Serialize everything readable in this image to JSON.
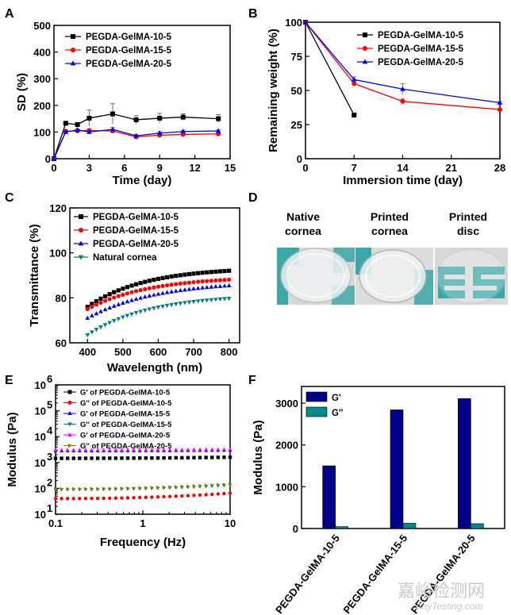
{
  "panel_labels": [
    "A",
    "B",
    "C",
    "D",
    "E",
    "F"
  ],
  "photos": {
    "labels": [
      {
        "line1": "Native",
        "line2": "cornea"
      },
      {
        "line1": "Printed",
        "line2": "cornea"
      },
      {
        "line1": "Printed",
        "line2": "disc"
      }
    ],
    "colors": {
      "background": "#d9d9d9",
      "teal": "#3aa7a8",
      "lens": "#eef2f2"
    }
  },
  "watermark": {
    "text": "嘉峪检测网",
    "sub": "AnyTesting.com"
  },
  "chart_data": [
    {
      "id": "A",
      "type": "line",
      "title": "",
      "xlabel": "Time (day)",
      "ylabel": "SD (%)",
      "xlim": [
        0,
        15
      ],
      "ylim": [
        0,
        500
      ],
      "xticks": [
        0,
        3,
        6,
        9,
        12,
        15
      ],
      "yticks": [
        0,
        100,
        200,
        300,
        400,
        500
      ],
      "legend_position": "top-left",
      "series": [
        {
          "name": "PEGDA-GelMA-10-5",
          "color": "#000000",
          "marker": "square",
          "x": [
            0,
            1,
            2,
            3,
            5,
            7,
            9,
            11,
            14
          ],
          "y": [
            0,
            133,
            128,
            152,
            168,
            146,
            152,
            156,
            150
          ],
          "err": [
            0,
            6,
            6,
            30,
            38,
            15,
            18,
            12,
            15
          ]
        },
        {
          "name": "PEGDA-GelMA-15-5",
          "color": "#ff0000",
          "marker": "circle",
          "x": [
            0,
            1,
            2,
            3,
            5,
            7,
            9,
            11,
            14
          ],
          "y": [
            0,
            103,
            104,
            106,
            104,
            82,
            88,
            91,
            93
          ],
          "err": [
            0,
            4,
            4,
            5,
            6,
            5,
            5,
            5,
            5
          ]
        },
        {
          "name": "PEGDA-GelMA-20-5",
          "color": "#0000ff",
          "marker": "triangle",
          "x": [
            0,
            1,
            2,
            3,
            5,
            7,
            9,
            11,
            14
          ],
          "y": [
            0,
            100,
            108,
            100,
            110,
            86,
            96,
            102,
            104
          ],
          "err": [
            0,
            4,
            4,
            5,
            8,
            5,
            6,
            5,
            5
          ]
        }
      ]
    },
    {
      "id": "B",
      "type": "line",
      "title": "",
      "xlabel": "Immersion time (day)",
      "ylabel": "Remaining weight (%)",
      "xlim": [
        0,
        28
      ],
      "ylim": [
        0,
        100
      ],
      "xticks": [
        0,
        7,
        14,
        21,
        28
      ],
      "yticks": [
        0,
        25,
        50,
        75,
        100
      ],
      "legend_position": "top-right",
      "series": [
        {
          "name": "PEGDA-GelMA-10-5",
          "color": "#000000",
          "marker": "square",
          "x": [
            0,
            7
          ],
          "y": [
            100,
            32
          ],
          "err": [
            0,
            1
          ]
        },
        {
          "name": "PEGDA-GelMA-15-5",
          "color": "#ff0000",
          "marker": "circle",
          "x": [
            0,
            7,
            14,
            28
          ],
          "y": [
            100,
            55,
            42,
            36
          ],
          "err": [
            0,
            2,
            2,
            1
          ]
        },
        {
          "name": "PEGDA-GelMA-20-5",
          "color": "#0000ff",
          "marker": "triangle",
          "x": [
            0,
            7,
            14,
            28
          ],
          "y": [
            100,
            58,
            51,
            41
          ],
          "err": [
            0,
            2,
            4,
            1
          ]
        }
      ]
    },
    {
      "id": "C",
      "type": "scatter",
      "title": "",
      "xlabel": "Wavelength (nm)",
      "ylabel": "Transmittance (%)",
      "xlim": [
        350,
        830
      ],
      "ylim": [
        60,
        120
      ],
      "xticks": [
        400,
        500,
        600,
        700,
        800
      ],
      "yticks": [
        60,
        80,
        100,
        120
      ],
      "legend_position": "top-left",
      "series": [
        {
          "name": "PEGDA-GelMA-10-5",
          "color": "#000000",
          "marker": "square",
          "start": 76,
          "end": 93.5,
          "k": 0.0062
        },
        {
          "name": "PEGDA-GelMA-15-5",
          "color": "#ff0000",
          "marker": "circle",
          "start": 75,
          "end": 89.5,
          "k": 0.0058
        },
        {
          "name": "PEGDA-GelMA-20-5",
          "color": "#0000ff",
          "marker": "triangle",
          "start": 71,
          "end": 87.5,
          "k": 0.0052
        },
        {
          "name": "Natural cornea",
          "color": "#008080",
          "marker": "triangle-down",
          "start": 63.5,
          "end": 81.5,
          "k": 0.0058
        }
      ]
    },
    {
      "id": "E",
      "type": "scatter",
      "title": "",
      "xlabel": "Frequency (Hz)",
      "ylabel": "Modulus (Pa)",
      "xscale": "log",
      "yscale": "log",
      "xlim": [
        0.1,
        10
      ],
      "ylim": [
        10,
        1000000
      ],
      "xticks": [
        0.1,
        1,
        10
      ],
      "xticklabels": [
        "0.1",
        "1",
        "10"
      ],
      "yticks": [
        10,
        100,
        1000,
        10000,
        100000,
        1000000
      ],
      "yticklabels": [
        "10",
        "10",
        "10",
        "10",
        "10",
        "10"
      ],
      "ytickexp": [
        "1",
        "2",
        "3",
        "4",
        "5",
        "6"
      ],
      "legend_position": "top-left",
      "series": [
        {
          "name": "G' of PEGDA-GelMA-10-5",
          "color": "#000000",
          "marker": "square",
          "start": 1450,
          "end": 1600
        },
        {
          "name": "G'' of PEGDA-GelMA-10-5",
          "color": "#ff0000",
          "marker": "circle",
          "start": 40,
          "end": 65
        },
        {
          "name": "G' of PEGDA-GelMA-15-5",
          "color": "#0000ff",
          "marker": "triangle",
          "start": 2800,
          "end": 2950
        },
        {
          "name": "G'' of PEGDA-GelMA-15-5",
          "color": "#008080",
          "marker": "triangle-down",
          "start": 90,
          "end": 135
        },
        {
          "name": "G' of PEGDA-GelMA-20-5",
          "color": "#ff00ff",
          "marker": "triangle",
          "start": 3050,
          "end": 3250
        },
        {
          "name": "G'' of PEGDA-GelMA-20-5",
          "color": "#808000",
          "marker": "triangle-right",
          "start": 95,
          "end": 145
        }
      ]
    },
    {
      "id": "F",
      "type": "bar",
      "title": "",
      "xlabel": "",
      "ylabel": "Modulus (Pa)",
      "ylim": [
        0,
        3400
      ],
      "yticks": [
        0,
        1000,
        2000,
        3000
      ],
      "categories": [
        "PEGDA-GelMA-10-5",
        "PEGDA-GelMA-15-5",
        "PEGDA-GelMA-20-5"
      ],
      "legend_position": "top-left",
      "series": [
        {
          "name": "G'",
          "color": "#00008b",
          "values": [
            1500,
            2840,
            3110
          ]
        },
        {
          "name": "G''",
          "color": "#008b8b",
          "values": [
            45,
            125,
            115
          ]
        }
      ]
    }
  ]
}
